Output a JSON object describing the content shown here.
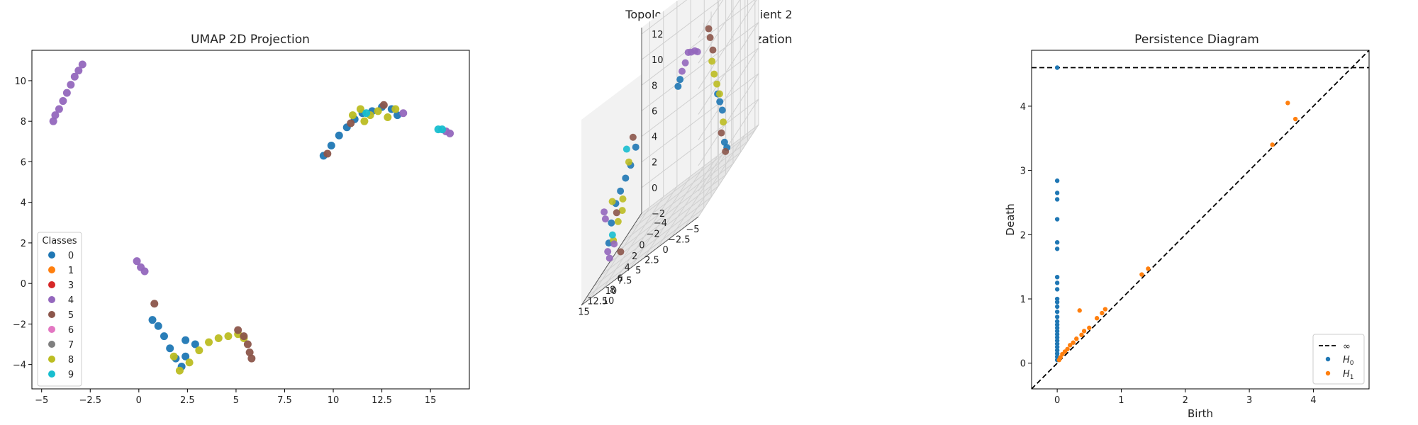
{
  "figure": {
    "title": "Topology Analysis for Client 2",
    "class_colors": {
      "0": "#1f77b4",
      "1": "#ff7f0e",
      "3": "#d62728",
      "4": "#9467bd",
      "5": "#8c564b",
      "6": "#e377c2",
      "7": "#7f7f7f",
      "8": "#bcbd22",
      "9": "#17becf"
    }
  },
  "chart_data": [
    {
      "type": "scatter",
      "title": "UMAP 2D Projection",
      "xlabel": "",
      "ylabel": "",
      "xlim": [
        -5.5,
        17.0
      ],
      "ylim": [
        -5.2,
        11.5
      ],
      "xticks": [
        -5.0,
        -2.5,
        0.0,
        2.5,
        5.0,
        7.5,
        10.0,
        12.5,
        15.0
      ],
      "yticks": [
        -4,
        -2,
        0,
        2,
        4,
        6,
        8,
        10
      ],
      "legend": {
        "title": "Classes",
        "position": "lower-left",
        "entries": [
          "0",
          "1",
          "3",
          "4",
          "5",
          "6",
          "7",
          "8",
          "9"
        ]
      },
      "clusters": [
        {
          "class": "4",
          "points": [
            [
              -4.4,
              8.0
            ],
            [
              -4.3,
              8.3
            ],
            [
              -4.1,
              8.6
            ],
            [
              -3.9,
              9.0
            ],
            [
              -3.7,
              9.4
            ],
            [
              -3.5,
              9.8
            ],
            [
              -3.3,
              10.2
            ],
            [
              -3.1,
              10.5
            ],
            [
              -2.9,
              10.8
            ]
          ]
        },
        {
          "class": "4",
          "points": [
            [
              -0.1,
              1.1
            ],
            [
              0.1,
              0.8
            ],
            [
              0.3,
              0.6
            ]
          ]
        },
        {
          "class": "0",
          "points": [
            [
              0.7,
              -1.8
            ],
            [
              1.0,
              -2.1
            ],
            [
              1.3,
              -2.6
            ],
            [
              1.6,
              -3.2
            ],
            [
              1.9,
              -3.7
            ],
            [
              2.2,
              -4.1
            ],
            [
              2.4,
              -3.6
            ],
            [
              2.4,
              -2.8
            ],
            [
              2.9,
              -3.0
            ]
          ]
        },
        {
          "class": "8",
          "points": [
            [
              1.8,
              -3.6
            ],
            [
              2.1,
              -4.3
            ],
            [
              2.6,
              -3.9
            ],
            [
              3.1,
              -3.3
            ],
            [
              3.6,
              -2.9
            ],
            [
              4.1,
              -2.7
            ],
            [
              4.6,
              -2.6
            ],
            [
              5.1,
              -2.5
            ],
            [
              5.4,
              -2.7
            ]
          ]
        },
        {
          "class": "5",
          "points": [
            [
              0.8,
              -1.0
            ],
            [
              5.1,
              -2.3
            ],
            [
              5.4,
              -2.6
            ],
            [
              5.6,
              -3.0
            ],
            [
              5.7,
              -3.4
            ],
            [
              5.8,
              -3.7
            ]
          ]
        },
        {
          "class": "0",
          "points": [
            [
              9.5,
              6.3
            ],
            [
              9.9,
              6.8
            ],
            [
              10.3,
              7.3
            ],
            [
              10.7,
              7.7
            ],
            [
              11.1,
              8.1
            ],
            [
              11.5,
              8.4
            ],
            [
              12.0,
              8.5
            ],
            [
              12.5,
              8.7
            ],
            [
              13.0,
              8.6
            ],
            [
              13.3,
              8.3
            ]
          ]
        },
        {
          "class": "8",
          "points": [
            [
              11.0,
              8.3
            ],
            [
              11.4,
              8.6
            ],
            [
              11.9,
              8.3
            ],
            [
              12.3,
              8.5
            ],
            [
              12.8,
              8.2
            ],
            [
              13.2,
              8.6
            ],
            [
              11.6,
              8.0
            ]
          ]
        },
        {
          "class": "5",
          "points": [
            [
              9.7,
              6.4
            ],
            [
              10.9,
              7.9
            ],
            [
              12.6,
              8.8
            ]
          ]
        },
        {
          "class": "4",
          "points": [
            [
              13.6,
              8.4
            ],
            [
              15.8,
              7.5
            ],
            [
              16.0,
              7.4
            ]
          ]
        },
        {
          "class": "9",
          "points": [
            [
              15.4,
              7.6
            ],
            [
              15.6,
              7.6
            ],
            [
              11.7,
              8.4
            ]
          ]
        }
      ]
    },
    {
      "type": "scatter",
      "title": "UMAP 3D Visualization",
      "xlabel": "",
      "ylabel": "",
      "zlabel": "",
      "xticks": [
        -5.0,
        -2.5,
        0.0,
        2.5,
        5.0,
        7.5,
        10.0,
        12.5,
        15.0
      ],
      "yticks": [
        -4,
        -2,
        0,
        2,
        4,
        6,
        8,
        10
      ],
      "zticks": [
        -2,
        0,
        2,
        4,
        6,
        8,
        10,
        12
      ],
      "xlim": [
        -5,
        16.5
      ],
      "ylim": [
        -5,
        11.5
      ],
      "zlim": [
        -2,
        12.5
      ],
      "grid": true,
      "clusters": [
        {
          "class": "4",
          "points": [
            [
              -3.5,
              9.5,
              10.5
            ],
            [
              -3.2,
              9.8,
              10.8
            ],
            [
              -2.8,
              10.2,
              11.0
            ],
            [
              -2.4,
              10.4,
              11.2
            ],
            [
              -2.0,
              10.6,
              10.6
            ],
            [
              -1.6,
              10.9,
              10.2
            ]
          ]
        },
        {
          "class": "0",
          "points": [
            [
              -1.3,
              11.0,
              9.7
            ],
            [
              -1.0,
              11.1,
              9.3
            ],
            [
              0.5,
              -4.5,
              -1.8
            ],
            [
              0.8,
              -4.3,
              -1.2
            ],
            [
              1.0,
              -4.0,
              1.5
            ],
            [
              1.2,
              -3.6,
              2.4
            ],
            [
              1.4,
              -3.3,
              3.2
            ]
          ]
        },
        {
          "class": "8",
          "points": [
            [
              0.9,
              -4.1,
              0.5
            ],
            [
              1.3,
              -3.7,
              3.0
            ],
            [
              1.6,
              -3.4,
              4.0
            ],
            [
              1.9,
              -3.1,
              5.0
            ],
            [
              2.1,
              -2.8,
              6.2
            ]
          ]
        },
        {
          "class": "5",
          "points": [
            [
              0.7,
              -4.4,
              -2.0
            ],
            [
              1.1,
              -3.9,
              -0.2
            ],
            [
              2.0,
              -2.9,
              7.0
            ],
            [
              2.3,
              -2.6,
              8.2
            ],
            [
              2.5,
              -2.5,
              9.0
            ]
          ]
        },
        {
          "class": "0",
          "points": [
            [
              10.0,
              6.3,
              6.0
            ],
            [
              10.6,
              6.8,
              5.0
            ],
            [
              11.2,
              7.3,
              4.4
            ],
            [
              11.8,
              7.8,
              3.8
            ],
            [
              12.4,
              8.2,
              3.2
            ],
            [
              13.0,
              8.5,
              2.0
            ],
            [
              13.4,
              8.6,
              0.6
            ]
          ]
        },
        {
          "class": "8",
          "points": [
            [
              10.8,
              7.0,
              5.4
            ],
            [
              11.5,
              7.6,
              3.0
            ],
            [
              12.1,
              8.0,
              1.6
            ],
            [
              12.7,
              8.4,
              0.5
            ],
            [
              11.4,
              7.9,
              2.2
            ],
            [
              12.9,
              8.4,
              3.6
            ]
          ]
        },
        {
          "class": "4",
          "points": [
            [
              12.5,
              8.5,
              0.2
            ],
            [
              13.2,
              8.7,
              -0.6
            ],
            [
              13.6,
              8.6,
              0.0
            ],
            [
              14.3,
              8.2,
              2.6
            ],
            [
              14.6,
              8.1,
              3.2
            ]
          ]
        },
        {
          "class": "5",
          "points": [
            [
              11.9,
              7.6,
              -1.0
            ],
            [
              12.3,
              8.1,
              2.4
            ],
            [
              10.3,
              6.6,
              7.0
            ]
          ]
        },
        {
          "class": "9",
          "points": [
            [
              12.8,
              8.5,
              1.0
            ],
            [
              11.0,
              7.3,
              6.6
            ]
          ]
        }
      ]
    },
    {
      "type": "scatter",
      "title": "Persistence Diagram",
      "xlabel": "Birth",
      "ylabel": "Death",
      "xlim": [
        -0.4,
        4.87
      ],
      "ylim": [
        -0.4,
        4.87
      ],
      "xticks": [
        0,
        1,
        2,
        3,
        4
      ],
      "yticks": [
        0,
        1,
        2,
        3,
        4
      ],
      "infinity_value": 4.6,
      "legend": {
        "position": "lower-right",
        "entries": [
          "∞",
          "H0",
          "H1"
        ]
      },
      "series": [
        {
          "name": "H0",
          "color": "#1f77b4",
          "points": [
            [
              0,
              4.6
            ],
            [
              0,
              2.84
            ],
            [
              0,
              2.65
            ],
            [
              0,
              2.55
            ],
            [
              0,
              2.24
            ],
            [
              0,
              1.88
            ],
            [
              0,
              1.78
            ],
            [
              0,
              1.34
            ],
            [
              0,
              1.25
            ],
            [
              0,
              1.15
            ],
            [
              0,
              1.0
            ],
            [
              0,
              0.95
            ],
            [
              0,
              0.88
            ],
            [
              0,
              0.8
            ],
            [
              0,
              0.72
            ],
            [
              0,
              0.65
            ],
            [
              0,
              0.6
            ],
            [
              0,
              0.55
            ],
            [
              0,
              0.5
            ],
            [
              0,
              0.45
            ],
            [
              0,
              0.4
            ],
            [
              0,
              0.35
            ],
            [
              0,
              0.3
            ],
            [
              0,
              0.25
            ],
            [
              0,
              0.2
            ],
            [
              0,
              0.15
            ],
            [
              0,
              0.1
            ],
            [
              0,
              0.05
            ]
          ]
        },
        {
          "name": "H1",
          "color": "#ff7f0e",
          "points": [
            [
              3.6,
              4.05
            ],
            [
              3.72,
              3.8
            ],
            [
              3.36,
              3.4
            ],
            [
              1.42,
              1.47
            ],
            [
              1.32,
              1.38
            ],
            [
              0.35,
              0.82
            ],
            [
              0.75,
              0.84
            ],
            [
              0.7,
              0.78
            ],
            [
              0.62,
              0.7
            ],
            [
              0.5,
              0.55
            ],
            [
              0.42,
              0.5
            ],
            [
              0.38,
              0.44
            ],
            [
              0.3,
              0.38
            ],
            [
              0.25,
              0.32
            ],
            [
              0.2,
              0.28
            ],
            [
              0.16,
              0.22
            ],
            [
              0.12,
              0.18
            ],
            [
              0.08,
              0.14
            ],
            [
              0.05,
              0.09
            ],
            [
              0.03,
              0.05
            ]
          ]
        }
      ]
    }
  ]
}
